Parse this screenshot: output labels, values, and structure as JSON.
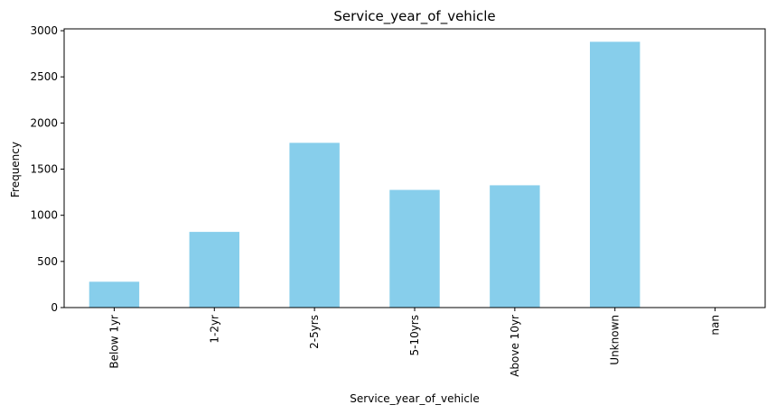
{
  "chart_data": {
    "type": "bar",
    "title": "Service_year_of_vehicle",
    "xlabel": "Service_year_of_vehicle",
    "ylabel": "Frequency",
    "categories": [
      "Below 1yr",
      "1-2yr",
      "2-5yrs",
      "5-10yrs",
      "Above 10yr",
      "Unknown",
      "nan"
    ],
    "values": [
      280,
      820,
      1785,
      1275,
      1325,
      2880,
      0
    ],
    "ylim": [
      0,
      3020
    ],
    "yticks": [
      0,
      500,
      1000,
      1500,
      2000,
      2500,
      3000
    ],
    "grid": false,
    "legend": "none",
    "bar_color": "#87ceeb"
  }
}
